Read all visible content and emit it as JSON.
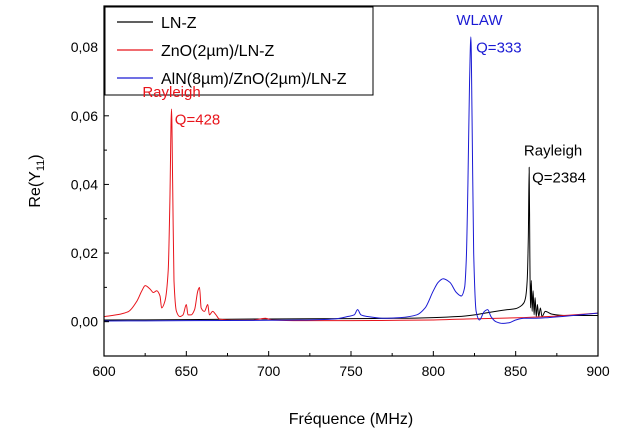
{
  "chart_data": {
    "type": "line",
    "xlabel": "Fréquence (MHz)",
    "ylabel": "Re(Y",
    "ylabel_sub": "11",
    "ylabel_close": ")",
    "xlim": [
      600,
      900
    ],
    "ylim": [
      -0.01,
      0.092
    ],
    "x_ticks": [
      600,
      650,
      700,
      750,
      800,
      850,
      900
    ],
    "x_tick_labels": [
      "600",
      "650",
      "700",
      "750",
      "800",
      "850",
      "900"
    ],
    "y_ticks": [
      0.0,
      0.02,
      0.04,
      0.06,
      0.08
    ],
    "y_tick_labels": [
      "0,00",
      "0,02",
      "0,04",
      "0,06",
      "0,08"
    ],
    "grid": false,
    "legend_position": "top-left",
    "series": [
      {
        "name": "LN-Z",
        "color": "#000000",
        "points": [
          [
            600,
            0.0005
          ],
          [
            650,
            0.0006
          ],
          [
            700,
            0.0008
          ],
          [
            750,
            0.0009
          ],
          [
            780,
            0.001
          ],
          [
            800,
            0.0012
          ],
          [
            815,
            0.0015
          ],
          [
            825,
            0.002
          ],
          [
            835,
            0.0028
          ],
          [
            845,
            0.0035
          ],
          [
            850,
            0.0038
          ],
          [
            853,
            0.0045
          ],
          [
            855,
            0.0055
          ],
          [
            856,
            0.007
          ],
          [
            857,
            0.012
          ],
          [
            857.7,
            0.025
          ],
          [
            858.2,
            0.045
          ],
          [
            858.6,
            0.02
          ],
          [
            859,
            0.004
          ],
          [
            859.5,
            0.012
          ],
          [
            860,
            0.003
          ],
          [
            860.6,
            0.009
          ],
          [
            861.2,
            0.002
          ],
          [
            861.8,
            0.007
          ],
          [
            862.5,
            0.0015
          ],
          [
            863.2,
            0.005
          ],
          [
            864,
            0.0015
          ],
          [
            865,
            0.004
          ],
          [
            866,
            0.0015
          ],
          [
            868,
            0.003
          ],
          [
            872,
            0.0022
          ],
          [
            880,
            0.0018
          ],
          [
            890,
            0.0018
          ],
          [
            900,
            0.0018
          ]
        ]
      },
      {
        "name": "ZnO(2µm)/LN-Z",
        "color": "#e8141b",
        "points": [
          [
            600,
            0.0015
          ],
          [
            610,
            0.0022
          ],
          [
            615,
            0.003
          ],
          [
            620,
            0.006
          ],
          [
            623,
            0.009
          ],
          [
            625,
            0.0105
          ],
          [
            628,
            0.0095
          ],
          [
            630,
            0.0085
          ],
          [
            632,
            0.009
          ],
          [
            634,
            0.0075
          ],
          [
            635,
            0.004
          ],
          [
            637,
            0.006
          ],
          [
            639,
            0.015
          ],
          [
            640,
            0.035
          ],
          [
            641,
            0.062
          ],
          [
            641.7,
            0.04
          ],
          [
            642.5,
            0.012
          ],
          [
            644,
            0.003
          ],
          [
            646,
            0.0015
          ],
          [
            648,
            0.002
          ],
          [
            650,
            0.005
          ],
          [
            651,
            0.002
          ],
          [
            653,
            0.002
          ],
          [
            655,
            0.0035
          ],
          [
            657,
            0.009
          ],
          [
            658,
            0.01
          ],
          [
            659,
            0.004
          ],
          [
            661,
            0.003
          ],
          [
            663,
            0.005
          ],
          [
            664,
            0.002
          ],
          [
            666,
            0.003
          ],
          [
            668,
            0.002
          ],
          [
            670,
            0.0008
          ],
          [
            680,
            0.0004
          ],
          [
            690,
            0.0004
          ],
          [
            698,
            0.001
          ],
          [
            702,
            0.0005
          ],
          [
            720,
            0.0003
          ],
          [
            750,
            0.0003
          ],
          [
            780,
            0.0004
          ],
          [
            800,
            0.0005
          ],
          [
            820,
            0.0008
          ],
          [
            840,
            0.001
          ],
          [
            855,
            0.0012
          ],
          [
            870,
            0.0015
          ],
          [
            885,
            0.002
          ],
          [
            900,
            0.0025
          ]
        ]
      },
      {
        "name": "AlN(8µm)/ZnO(2µm)/LN-Z",
        "color": "#1a1ad4",
        "points": [
          [
            600,
            0.0002
          ],
          [
            650,
            0.0003
          ],
          [
            700,
            0.0004
          ],
          [
            720,
            0.0005
          ],
          [
            740,
            0.0008
          ],
          [
            748,
            0.0015
          ],
          [
            752,
            0.002
          ],
          [
            754,
            0.0035
          ],
          [
            756,
            0.002
          ],
          [
            760,
            0.0015
          ],
          [
            770,
            0.001
          ],
          [
            780,
            0.0012
          ],
          [
            790,
            0.002
          ],
          [
            795,
            0.004
          ],
          [
            800,
            0.009
          ],
          [
            803,
            0.0115
          ],
          [
            806,
            0.0125
          ],
          [
            810,
            0.0115
          ],
          [
            814,
            0.0085
          ],
          [
            817,
            0.0075
          ],
          [
            819,
            0.01
          ],
          [
            820,
            0.018
          ],
          [
            821,
            0.04
          ],
          [
            822,
            0.07
          ],
          [
            822.8,
            0.083
          ],
          [
            823.5,
            0.06
          ],
          [
            824.5,
            0.02
          ],
          [
            826,
            0.003
          ],
          [
            828,
            0.0005
          ],
          [
            831,
            0.003
          ],
          [
            833,
            0.0035
          ],
          [
            835,
            0.0015
          ],
          [
            838,
            0.0
          ],
          [
            842,
            -0.0005
          ],
          [
            846,
            -0.0003
          ],
          [
            850,
            0.0005
          ],
          [
            855,
            0.001
          ],
          [
            862,
            0.001
          ],
          [
            870,
            0.0012
          ],
          [
            885,
            0.0018
          ],
          [
            900,
            0.0025
          ]
        ]
      }
    ],
    "annotations": [
      {
        "id": "rayleigh-red",
        "text": "Rayleigh",
        "x": 641,
        "y": 0.0655,
        "color": "#e8141b"
      },
      {
        "id": "q-red",
        "text": "Q=428",
        "x": 643,
        "y": 0.0575,
        "color": "#e8141b"
      },
      {
        "id": "wlaw-blue",
        "text": "WLAW",
        "x": 814,
        "y": 0.0865,
        "color": "#1a1ad4"
      },
      {
        "id": "q-blue",
        "text": "Q=333",
        "x": 826,
        "y": 0.0785,
        "color": "#1a1ad4"
      },
      {
        "id": "rayleigh-black",
        "text": "Rayleigh",
        "x": 855,
        "y": 0.0485,
        "color": "#000000"
      },
      {
        "id": "q-black",
        "text": "Q=2384",
        "x": 860,
        "y": 0.0405,
        "color": "#000000"
      }
    ]
  }
}
